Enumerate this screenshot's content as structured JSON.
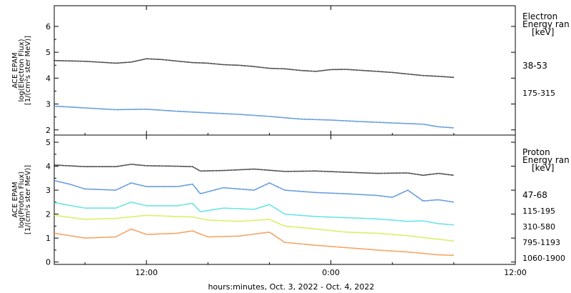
{
  "xaxis": {
    "label": "hours:minutes, Oct.  3, 2022 - Oct.  4, 2022",
    "ticks": [
      {
        "label": "12:00",
        "hours": 12
      },
      {
        "label": "0:00",
        "hours": 24
      },
      {
        "label": "12:00",
        "hours": 36
      }
    ],
    "range_hours": [
      6,
      36
    ]
  },
  "chart_data": [
    {
      "type": "line",
      "ylabel_lines": [
        "ACE EPAM",
        "log(Electron Flux)",
        "[1/(cm²s ster MeV)]"
      ],
      "ylim": [
        1.8,
        6.8
      ],
      "yticks": [
        2,
        3,
        4,
        5,
        6
      ],
      "legend_title": [
        "Electron",
        "Energy ran",
        "[keV]"
      ],
      "series": [
        {
          "name": "38-53",
          "color": "#000000",
          "x": [
            6.0,
            8.0,
            10.0,
            11.0,
            12.0,
            13.0,
            14.0,
            15.0,
            16.0,
            17.0,
            18.0,
            19.0,
            20.0,
            21.0,
            22.0,
            23.0,
            24.0,
            25.0,
            26.0,
            27.0,
            28.0,
            29.0,
            30.0,
            31.0,
            32.0
          ],
          "y": [
            4.68,
            4.65,
            4.58,
            4.62,
            4.75,
            4.72,
            4.66,
            4.6,
            4.58,
            4.52,
            4.5,
            4.45,
            4.38,
            4.36,
            4.3,
            4.26,
            4.33,
            4.34,
            4.3,
            4.26,
            4.22,
            4.16,
            4.1,
            4.07,
            4.03
          ]
        },
        {
          "name": "175-315",
          "color": "#1f6fd0",
          "x": [
            6.0,
            8.0,
            10.0,
            12.0,
            14.0,
            16.0,
            18.0,
            20.0,
            22.0,
            24.0,
            26.0,
            28.0,
            30.0,
            31.0,
            32.0
          ],
          "y": [
            2.92,
            2.85,
            2.78,
            2.8,
            2.72,
            2.66,
            2.6,
            2.52,
            2.42,
            2.38,
            2.32,
            2.27,
            2.22,
            2.12,
            2.08
          ]
        }
      ]
    },
    {
      "type": "line",
      "ylabel_lines": [
        "ACE EPAM",
        "log(Proton Flux)",
        "[1/(cm²s ster MeV)]"
      ],
      "ylim": [
        -0.1,
        5.3
      ],
      "yticks": [
        0,
        1,
        2,
        3,
        4,
        5
      ],
      "legend_title": [
        "Proton",
        "Energy ran",
        "[keV]"
      ],
      "series": [
        {
          "name": "47-68",
          "color": "#000000",
          "x": [
            6.0,
            8.0,
            10.0,
            11.0,
            12.0,
            14.0,
            15.0,
            15.5,
            17.0,
            19.0,
            21.0,
            23.0,
            25.0,
            27.0,
            29.0,
            30.0,
            31.0,
            32.0
          ],
          "y": [
            4.05,
            3.98,
            3.98,
            4.08,
            4.02,
            4.0,
            3.98,
            3.8,
            3.82,
            3.88,
            3.78,
            3.8,
            3.75,
            3.7,
            3.72,
            3.62,
            3.7,
            3.62
          ]
        },
        {
          "name": "115-195",
          "color": "#1f6fd0",
          "x": [
            6.0,
            7.0,
            8.0,
            10.0,
            11.0,
            12.0,
            14.0,
            15.0,
            15.5,
            17.0,
            19.0,
            20.0,
            21.0,
            23.0,
            25.0,
            27.0,
            28.0,
            29.0,
            30.0,
            31.0,
            32.0
          ],
          "y": [
            3.4,
            3.25,
            3.05,
            3.0,
            3.3,
            3.15,
            3.15,
            3.25,
            2.85,
            3.1,
            3.0,
            3.3,
            3.0,
            2.9,
            2.85,
            2.78,
            2.7,
            3.0,
            2.55,
            2.6,
            2.5
          ]
        },
        {
          "name": "310-580",
          "color": "#22d6d6",
          "x": [
            6.0,
            8.0,
            10.0,
            11.0,
            12.0,
            14.0,
            15.0,
            15.5,
            17.0,
            19.0,
            20.0,
            21.0,
            23.0,
            25.0,
            27.0,
            29.0,
            30.0,
            31.0,
            32.0
          ],
          "y": [
            2.48,
            2.25,
            2.25,
            2.5,
            2.35,
            2.35,
            2.45,
            2.1,
            2.25,
            2.2,
            2.4,
            2.0,
            1.9,
            1.85,
            1.8,
            1.7,
            1.72,
            1.6,
            1.55
          ]
        },
        {
          "name": "795-1193",
          "color": "#c8e81c",
          "x": [
            6.0,
            8.0,
            10.0,
            12.0,
            14.0,
            15.0,
            16.0,
            18.0,
            20.0,
            21.0,
            23.0,
            25.0,
            27.0,
            29.0,
            31.0,
            32.0
          ],
          "y": [
            1.95,
            1.78,
            1.82,
            1.95,
            1.9,
            1.88,
            1.75,
            1.7,
            1.78,
            1.5,
            1.38,
            1.25,
            1.2,
            1.1,
            0.95,
            0.88
          ]
        },
        {
          "name": "1060-1900",
          "color": "#f07818",
          "x": [
            6.0,
            8.0,
            10.0,
            11.0,
            12.0,
            14.0,
            15.0,
            16.0,
            18.0,
            20.0,
            21.0,
            23.0,
            25.0,
            27.0,
            29.0,
            31.0,
            32.0
          ],
          "y": [
            1.2,
            1.0,
            1.05,
            1.38,
            1.15,
            1.2,
            1.3,
            1.05,
            1.08,
            1.25,
            0.82,
            0.7,
            0.6,
            0.5,
            0.42,
            0.3,
            0.28
          ]
        }
      ]
    }
  ]
}
